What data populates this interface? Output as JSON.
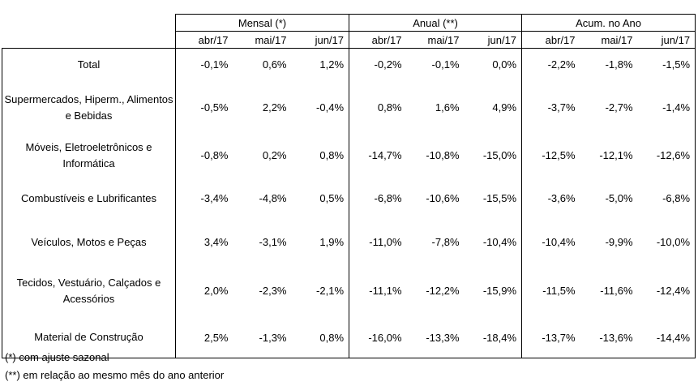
{
  "groups": [
    "Mensal (*)",
    "Anual (**)",
    "Acum. no Ano"
  ],
  "months": [
    "abr/17",
    "mai/17",
    "jun/17",
    "abr/17",
    "mai/17",
    "jun/17",
    "abr/17",
    "mai/17",
    "jun/17"
  ],
  "rows": [
    {
      "label": "Total",
      "values": [
        "-0,1%",
        "0,6%",
        "1,2%",
        "-0,2%",
        "-0,1%",
        "0,0%",
        "-2,2%",
        "-1,8%",
        "-1,5%"
      ]
    },
    {
      "label": "Supermercados, Hiperm., Alimentos e Bebidas",
      "values": [
        "-0,5%",
        "2,2%",
        "-0,4%",
        "0,8%",
        "1,6%",
        "4,9%",
        "-3,7%",
        "-2,7%",
        "-1,4%"
      ]
    },
    {
      "label": "Móveis,  Eletroeletrônicos e Informática",
      "values": [
        "-0,8%",
        "0,2%",
        "0,8%",
        "-14,7%",
        "-10,8%",
        "-15,0%",
        "-12,5%",
        "-12,1%",
        "-12,6%"
      ]
    },
    {
      "label": "Combustíveis e Lubrificantes",
      "values": [
        "-3,4%",
        "-4,8%",
        "0,5%",
        "-6,8%",
        "-10,6%",
        "-15,5%",
        "-3,6%",
        "-5,0%",
        "-6,8%"
      ]
    },
    {
      "label": "Veículos, Motos e Peças",
      "values": [
        "3,4%",
        "-3,1%",
        "1,9%",
        "-11,0%",
        "-7,8%",
        "-10,4%",
        "-10,4%",
        "-9,9%",
        "-10,0%"
      ]
    },
    {
      "label": "Tecidos, Vestuário, Calçados e Acessórios",
      "values": [
        "2,0%",
        "-2,3%",
        "-2,1%",
        "-11,1%",
        "-12,2%",
        "-15,9%",
        "-11,5%",
        "-11,6%",
        "-12,4%"
      ]
    },
    {
      "label": "Material de Construção",
      "values": [
        "2,5%",
        "-1,3%",
        "0,8%",
        "-16,0%",
        "-13,3%",
        "-18,4%",
        "-13,7%",
        "-13,6%",
        "-14,4%"
      ]
    }
  ],
  "notes": [
    "(*) com ajuste sazonal",
    "(**) em relação ao mesmo mês do ano anterior"
  ]
}
